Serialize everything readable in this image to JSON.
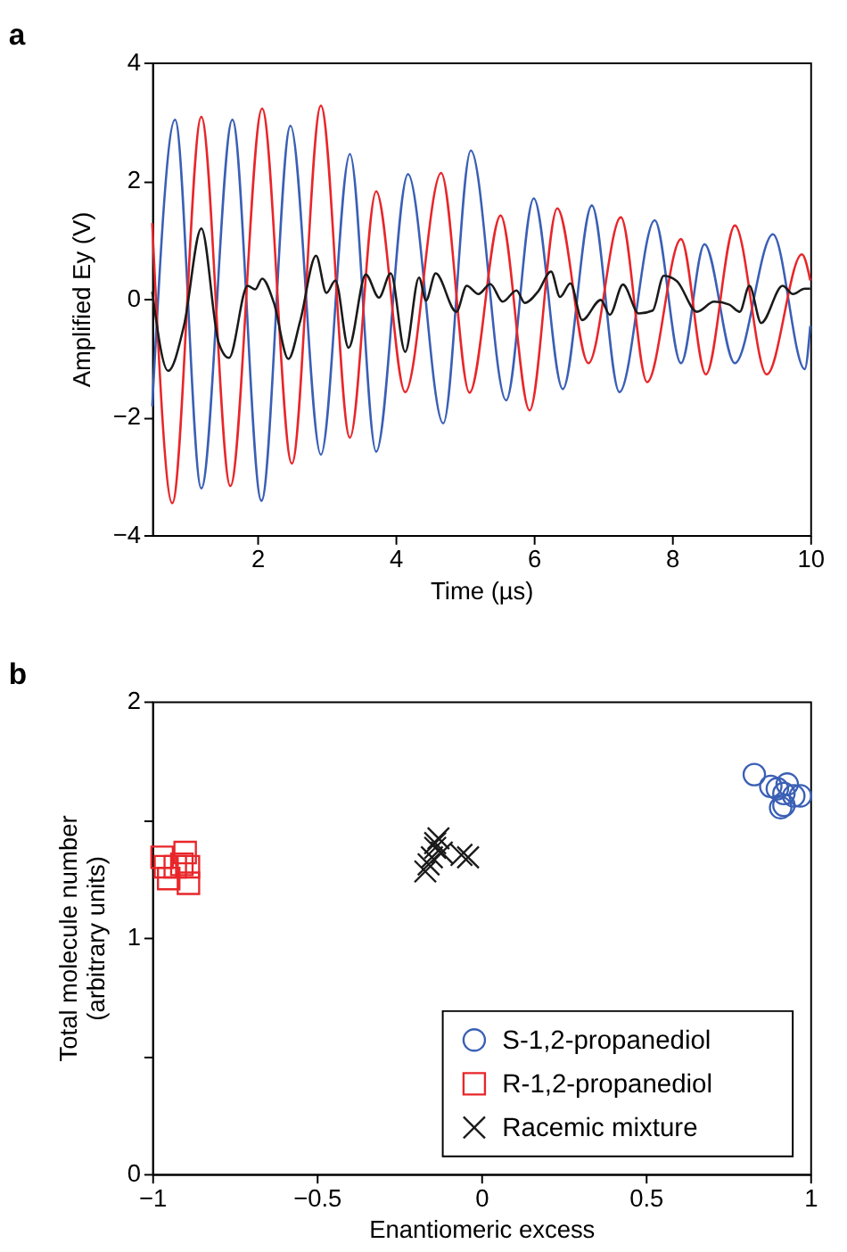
{
  "chart_data": [
    {
      "type": "line",
      "title": "a",
      "xlabel": "Time (µs)",
      "ylabel": "Amplified Ey (V)",
      "xlim": [
        0.48,
        10
      ],
      "xticks": [
        2,
        4,
        6,
        8,
        10
      ],
      "ylim": [
        -4,
        4
      ],
      "yticks": [
        -4,
        -2,
        0,
        2,
        4
      ],
      "grid": false,
      "legend": false,
      "line_style": "solid",
      "series": [
        {
          "color": "#3a5fb5",
          "x": [
            0.48,
            0.81,
            1.19,
            1.64,
            2.06,
            2.48,
            2.92,
            3.34,
            3.72,
            4.18,
            4.69,
            5.09,
            5.6,
            6.0,
            6.42,
            6.84,
            7.24,
            7.75,
            8.13,
            8.47,
            8.91,
            9.46,
            9.92,
            10.0
          ],
          "values": [
            -1.82,
            3.03,
            -3.21,
            3.03,
            -3.42,
            2.93,
            -2.64,
            2.45,
            -2.59,
            2.11,
            -2.11,
            2.51,
            -1.72,
            1.7,
            -1.53,
            1.58,
            -1.58,
            1.33,
            -1.09,
            0.92,
            -1.09,
            1.09,
            -1.19,
            -0.46
          ]
        },
        {
          "color": "#e8262a",
          "x": [
            0.48,
            0.77,
            1.19,
            1.61,
            2.07,
            2.5,
            2.92,
            3.34,
            3.72,
            4.14,
            4.66,
            5.07,
            5.52,
            5.94,
            6.34,
            6.79,
            7.26,
            7.64,
            8.13,
            8.49,
            8.91,
            9.37,
            9.88,
            10.0
          ],
          "values": [
            1.28,
            -3.46,
            3.08,
            -3.17,
            3.22,
            -2.79,
            3.27,
            -2.35,
            1.82,
            -1.58,
            2.13,
            -1.59,
            1.41,
            -1.89,
            1.53,
            -1.09,
            1.38,
            -1.41,
            1.01,
            -1.28,
            1.24,
            -1.28,
            0.75,
            0.31
          ]
        },
        {
          "color": "#1a1a1a",
          "x": [
            0.48,
            0.71,
            0.94,
            1.19,
            1.44,
            1.59,
            1.86,
            1.97,
            2.07,
            2.24,
            2.45,
            2.62,
            2.85,
            3.0,
            3.13,
            3.32,
            3.57,
            3.76,
            3.93,
            4.14,
            4.34,
            4.44,
            4.58,
            4.88,
            5.03,
            5.2,
            5.37,
            5.55,
            5.75,
            5.87,
            6.06,
            6.25,
            6.38,
            6.53,
            6.7,
            6.97,
            7.1,
            7.29,
            7.52,
            7.72,
            7.88,
            8.07,
            8.36,
            8.61,
            8.83,
            8.98,
            9.12,
            9.29,
            9.6,
            9.75,
            9.92,
            10.0
          ],
          "values": [
            0.12,
            -1.22,
            -0.45,
            1.19,
            -0.74,
            -1.0,
            0.22,
            0.16,
            0.34,
            -0.07,
            -1.02,
            -0.38,
            0.73,
            0.1,
            0.31,
            -0.83,
            0.41,
            0.02,
            0.43,
            -0.9,
            0.36,
            -0.03,
            0.43,
            -0.22,
            0.22,
            0.08,
            0.25,
            -0.05,
            0.14,
            -0.07,
            0.12,
            0.46,
            0.03,
            0.26,
            -0.36,
            -0.02,
            -0.27,
            0.24,
            -0.25,
            -0.2,
            0.39,
            0.3,
            -0.22,
            -0.05,
            -0.1,
            -0.22,
            0.22,
            -0.41,
            0.22,
            0.08,
            0.17,
            0.17
          ]
        }
      ]
    },
    {
      "type": "scatter",
      "title": "b",
      "xlabel": "Enantiomeric excess",
      "ylabel": "Total molecule number\n(arbitrary units)",
      "xlim": [
        -1,
        1
      ],
      "xticks": [
        -1,
        -0.5,
        0,
        0.5,
        1
      ],
      "ylim": [
        0,
        2
      ],
      "yticks": [
        0,
        {
          "value": 0.5,
          "label": null
        },
        1,
        {
          "value": 1.5,
          "label": null
        },
        2
      ],
      "grid": false,
      "legend": "bottom right",
      "series": [
        {
          "name": "S-1,2-propanediol",
          "color": "#3a5fb5",
          "marker": "circle",
          "x": [
            0.83,
            0.88,
            0.9,
            0.93,
            0.92,
            0.95,
            0.92,
            0.91,
            0.97
          ],
          "values": [
            1.69,
            1.64,
            1.63,
            1.65,
            1.61,
            1.6,
            1.56,
            1.55,
            1.6
          ]
        },
        {
          "name": "R-1,2-propanediol",
          "color": "#e8262a",
          "marker": "square",
          "x": [
            -0.97,
            -0.96,
            -0.95,
            -0.9,
            -0.91,
            -0.89,
            -0.89,
            -0.93
          ],
          "values": [
            1.34,
            1.3,
            1.25,
            1.36,
            1.31,
            1.3,
            1.23,
            1.3
          ]
        },
        {
          "name": "Racemic mixture",
          "color": "#1a1a1a",
          "marker": "cross",
          "x": [
            -0.17,
            -0.16,
            -0.14,
            -0.13,
            -0.14,
            -0.12,
            -0.06,
            -0.04,
            -0.15
          ],
          "values": [
            1.28,
            1.31,
            1.4,
            1.42,
            1.38,
            1.36,
            1.35,
            1.34,
            1.34
          ]
        }
      ]
    }
  ]
}
